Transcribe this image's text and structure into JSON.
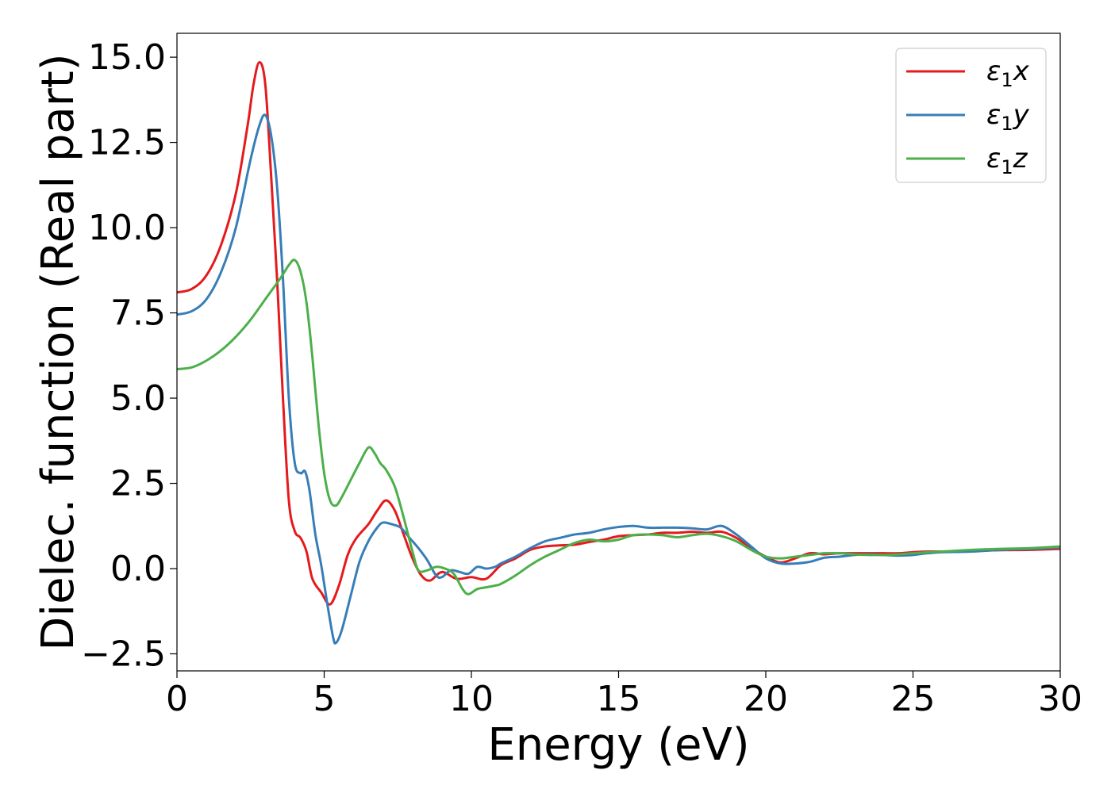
{
  "chart_data": {
    "type": "line",
    "xlabel": "Energy (eV)",
    "ylabel": "Dielec. function (Real part)",
    "xlim": [
      0,
      30
    ],
    "ylim": [
      -3.0,
      15.7
    ],
    "xticks": [
      0,
      5,
      10,
      15,
      20,
      25,
      30
    ],
    "xtick_labels": [
      "0",
      "5",
      "10",
      "15",
      "20",
      "25",
      "30"
    ],
    "yticks": [
      -2.5,
      0.0,
      2.5,
      5.0,
      7.5,
      10.0,
      12.5,
      15.0
    ],
    "ytick_labels": [
      "−2.5",
      "0.0",
      "2.5",
      "5.0",
      "7.5",
      "10.0",
      "12.5",
      "15.0"
    ],
    "grid": false,
    "legend_position": "top-right",
    "series": [
      {
        "name": "ε₁x",
        "legend_base": "ε",
        "legend_sub": "1",
        "legend_var": "x",
        "color": "#e41a1c",
        "points": [
          [
            0,
            8.1
          ],
          [
            0.5,
            8.2
          ],
          [
            1.0,
            8.6
          ],
          [
            1.5,
            9.5
          ],
          [
            2.0,
            11.0
          ],
          [
            2.4,
            13.0
          ],
          [
            2.6,
            14.2
          ],
          [
            2.8,
            14.85
          ],
          [
            3.0,
            14.2
          ],
          [
            3.2,
            11.5
          ],
          [
            3.4,
            8.5
          ],
          [
            3.6,
            5.0
          ],
          [
            3.8,
            2.0
          ],
          [
            4.0,
            1.1
          ],
          [
            4.2,
            0.9
          ],
          [
            4.4,
            0.5
          ],
          [
            4.6,
            -0.3
          ],
          [
            4.9,
            -0.7
          ],
          [
            5.2,
            -1.05
          ],
          [
            5.5,
            -0.5
          ],
          [
            5.8,
            0.4
          ],
          [
            6.1,
            0.9
          ],
          [
            6.5,
            1.3
          ],
          [
            6.8,
            1.7
          ],
          [
            7.1,
            2.0
          ],
          [
            7.4,
            1.7
          ],
          [
            7.7,
            1.0
          ],
          [
            8.0,
            0.3
          ],
          [
            8.3,
            -0.2
          ],
          [
            8.6,
            -0.35
          ],
          [
            9.0,
            -0.1
          ],
          [
            9.5,
            -0.3
          ],
          [
            10.0,
            -0.25
          ],
          [
            10.5,
            -0.3
          ],
          [
            11.0,
            0.1
          ],
          [
            11.5,
            0.3
          ],
          [
            12.0,
            0.55
          ],
          [
            12.5,
            0.65
          ],
          [
            13.0,
            0.68
          ],
          [
            13.5,
            0.7
          ],
          [
            14.0,
            0.78
          ],
          [
            14.5,
            0.85
          ],
          [
            15.0,
            0.95
          ],
          [
            15.5,
            0.98
          ],
          [
            16.0,
            1.0
          ],
          [
            16.5,
            1.05
          ],
          [
            17.0,
            1.05
          ],
          [
            17.5,
            1.08
          ],
          [
            18.0,
            1.05
          ],
          [
            18.5,
            1.08
          ],
          [
            19.0,
            0.9
          ],
          [
            19.5,
            0.6
          ],
          [
            20.0,
            0.35
          ],
          [
            20.5,
            0.18
          ],
          [
            21.0,
            0.3
          ],
          [
            21.5,
            0.45
          ],
          [
            22.0,
            0.42
          ],
          [
            22.5,
            0.45
          ],
          [
            23.0,
            0.45
          ],
          [
            23.5,
            0.45
          ],
          [
            24.0,
            0.45
          ],
          [
            24.5,
            0.45
          ],
          [
            25.0,
            0.48
          ],
          [
            25.5,
            0.5
          ],
          [
            26.0,
            0.5
          ],
          [
            27.0,
            0.52
          ],
          [
            28.0,
            0.54
          ],
          [
            29.0,
            0.55
          ],
          [
            30.0,
            0.58
          ]
        ]
      },
      {
        "name": "ε₁y",
        "legend_base": "ε",
        "legend_sub": "1",
        "legend_var": "y",
        "color": "#377eb8",
        "points": [
          [
            0,
            7.45
          ],
          [
            0.5,
            7.55
          ],
          [
            1.0,
            7.9
          ],
          [
            1.5,
            8.7
          ],
          [
            2.0,
            10.0
          ],
          [
            2.5,
            12.0
          ],
          [
            2.8,
            13.0
          ],
          [
            3.0,
            13.3
          ],
          [
            3.2,
            12.7
          ],
          [
            3.4,
            11.2
          ],
          [
            3.6,
            8.5
          ],
          [
            3.8,
            5.0
          ],
          [
            4.0,
            3.1
          ],
          [
            4.2,
            2.8
          ],
          [
            4.35,
            2.85
          ],
          [
            4.5,
            2.3
          ],
          [
            4.7,
            1.0
          ],
          [
            4.9,
            0.1
          ],
          [
            5.1,
            -1.0
          ],
          [
            5.3,
            -2.0
          ],
          [
            5.4,
            -2.18
          ],
          [
            5.6,
            -1.8
          ],
          [
            5.9,
            -0.8
          ],
          [
            6.2,
            0.2
          ],
          [
            6.5,
            0.8
          ],
          [
            6.8,
            1.2
          ],
          [
            7.0,
            1.35
          ],
          [
            7.3,
            1.3
          ],
          [
            7.6,
            1.2
          ],
          [
            7.9,
            0.9
          ],
          [
            8.2,
            0.6
          ],
          [
            8.5,
            0.25
          ],
          [
            8.8,
            -0.2
          ],
          [
            9.0,
            -0.25
          ],
          [
            9.3,
            -0.05
          ],
          [
            9.6,
            -0.1
          ],
          [
            9.9,
            -0.15
          ],
          [
            10.2,
            0.05
          ],
          [
            10.5,
            0.0
          ],
          [
            10.8,
            0.05
          ],
          [
            11.0,
            0.15
          ],
          [
            11.5,
            0.35
          ],
          [
            12.0,
            0.6
          ],
          [
            12.5,
            0.8
          ],
          [
            13.0,
            0.9
          ],
          [
            13.5,
            1.0
          ],
          [
            14.0,
            1.05
          ],
          [
            14.5,
            1.15
          ],
          [
            15.0,
            1.22
          ],
          [
            15.5,
            1.25
          ],
          [
            16.0,
            1.2
          ],
          [
            16.5,
            1.2
          ],
          [
            17.0,
            1.2
          ],
          [
            17.5,
            1.18
          ],
          [
            18.0,
            1.15
          ],
          [
            18.5,
            1.25
          ],
          [
            19.0,
            1.0
          ],
          [
            19.5,
            0.65
          ],
          [
            20.0,
            0.3
          ],
          [
            20.5,
            0.15
          ],
          [
            21.0,
            0.15
          ],
          [
            21.5,
            0.2
          ],
          [
            22.0,
            0.32
          ],
          [
            22.5,
            0.35
          ],
          [
            23.0,
            0.4
          ],
          [
            23.5,
            0.42
          ],
          [
            24.0,
            0.4
          ],
          [
            24.5,
            0.38
          ],
          [
            25.0,
            0.4
          ],
          [
            25.5,
            0.45
          ],
          [
            26.0,
            0.48
          ],
          [
            27.0,
            0.5
          ],
          [
            28.0,
            0.55
          ],
          [
            29.0,
            0.58
          ],
          [
            30.0,
            0.62
          ]
        ]
      },
      {
        "name": "ε₁z",
        "legend_base": "ε",
        "legend_sub": "1",
        "legend_var": "z",
        "color": "#4daf4a",
        "points": [
          [
            0,
            5.85
          ],
          [
            0.5,
            5.9
          ],
          [
            1.0,
            6.1
          ],
          [
            1.5,
            6.4
          ],
          [
            2.0,
            6.8
          ],
          [
            2.5,
            7.3
          ],
          [
            3.0,
            7.9
          ],
          [
            3.5,
            8.5
          ],
          [
            3.8,
            8.9
          ],
          [
            4.0,
            9.05
          ],
          [
            4.2,
            8.7
          ],
          [
            4.4,
            7.8
          ],
          [
            4.6,
            6.2
          ],
          [
            4.8,
            4.3
          ],
          [
            5.0,
            2.8
          ],
          [
            5.2,
            2.0
          ],
          [
            5.4,
            1.85
          ],
          [
            5.6,
            2.1
          ],
          [
            5.9,
            2.6
          ],
          [
            6.2,
            3.1
          ],
          [
            6.5,
            3.55
          ],
          [
            6.7,
            3.4
          ],
          [
            6.9,
            3.1
          ],
          [
            7.1,
            2.9
          ],
          [
            7.4,
            2.4
          ],
          [
            7.7,
            1.5
          ],
          [
            8.0,
            0.5
          ],
          [
            8.2,
            -0.05
          ],
          [
            8.5,
            -0.05
          ],
          [
            8.8,
            0.05
          ],
          [
            9.1,
            0.0
          ],
          [
            9.4,
            -0.15
          ],
          [
            9.7,
            -0.6
          ],
          [
            9.9,
            -0.75
          ],
          [
            10.2,
            -0.6
          ],
          [
            10.5,
            -0.55
          ],
          [
            10.8,
            -0.5
          ],
          [
            11.0,
            -0.45
          ],
          [
            11.5,
            -0.2
          ],
          [
            12.0,
            0.1
          ],
          [
            12.5,
            0.35
          ],
          [
            13.0,
            0.55
          ],
          [
            13.5,
            0.75
          ],
          [
            14.0,
            0.85
          ],
          [
            14.5,
            0.8
          ],
          [
            15.0,
            0.85
          ],
          [
            15.5,
            0.98
          ],
          [
            16.0,
            1.0
          ],
          [
            16.5,
            0.98
          ],
          [
            17.0,
            0.92
          ],
          [
            17.5,
            0.98
          ],
          [
            18.0,
            1.02
          ],
          [
            18.5,
            0.95
          ],
          [
            19.0,
            0.8
          ],
          [
            19.5,
            0.55
          ],
          [
            20.0,
            0.35
          ],
          [
            20.5,
            0.3
          ],
          [
            21.0,
            0.35
          ],
          [
            21.5,
            0.4
          ],
          [
            22.0,
            0.45
          ],
          [
            22.5,
            0.45
          ],
          [
            23.0,
            0.42
          ],
          [
            23.5,
            0.4
          ],
          [
            24.0,
            0.4
          ],
          [
            24.5,
            0.42
          ],
          [
            25.0,
            0.45
          ],
          [
            25.5,
            0.48
          ],
          [
            26.0,
            0.5
          ],
          [
            27.0,
            0.55
          ],
          [
            28.0,
            0.58
          ],
          [
            29.0,
            0.6
          ],
          [
            30.0,
            0.65
          ]
        ]
      }
    ]
  }
}
